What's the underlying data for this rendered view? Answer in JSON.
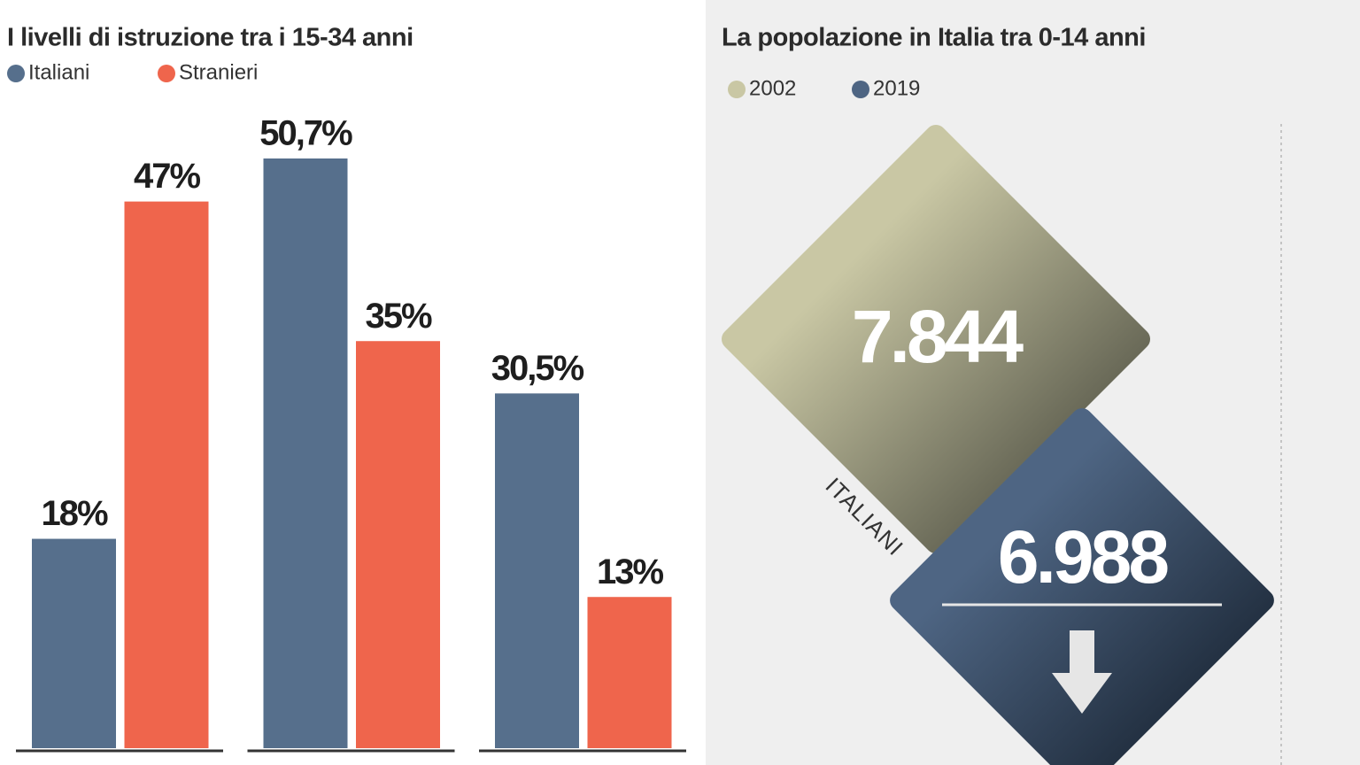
{
  "chart_data": [
    {
      "type": "bar",
      "title": "I livelli di istruzione tra i 15-34 anni",
      "categories": [
        null,
        null,
        null
      ],
      "series": [
        {
          "name": "Italiani",
          "color": "#566f8c",
          "values": [
            18,
            50.7,
            30.5
          ],
          "value_labels": [
            "18%",
            "50,7%",
            "30,5%"
          ]
        },
        {
          "name": "Stranieri",
          "color": "#ef654c",
          "values": [
            47,
            35,
            13
          ],
          "value_labels": [
            "47%",
            "35%",
            "13%"
          ]
        }
      ]
    },
    {
      "type": "diamond",
      "title": "La popolazione in Italia tra 0-14 anni",
      "categories": [
        "ITALIANI"
      ],
      "series": [
        {
          "name": "2002",
          "color": "#c9c7a4",
          "values": [
            7844
          ],
          "value_labels": [
            "7.844"
          ]
        },
        {
          "name": "2019",
          "color": "#4e6583",
          "values": [
            6988
          ],
          "value_labels": [
            "6.988"
          ]
        }
      ]
    }
  ]
}
